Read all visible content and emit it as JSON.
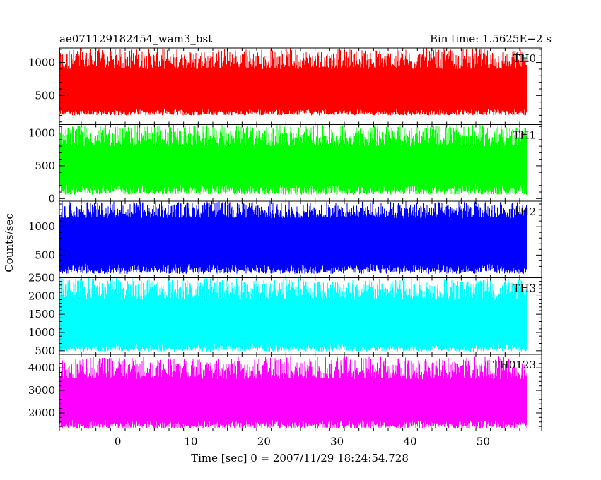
{
  "header": {
    "title": "ae071129182454_wam3_bst",
    "bin_time": "Bin time: 1.5625E−2 s"
  },
  "chart_data": {
    "type": "line",
    "x_axis": {
      "label": "Time [sec] 0 = 2007/11/29 18:24:54.728",
      "range": [
        -8,
        58
      ],
      "ticks": [
        0,
        10,
        20,
        30,
        40,
        50
      ],
      "data_range": [
        -8,
        56
      ]
    },
    "y_axis_label": "Counts/sec",
    "panels": [
      {
        "name": "TH0",
        "color": "#ff0000",
        "ylim": [
          60,
          1220
        ],
        "yticks": [
          500,
          1000
        ],
        "baseline": [
          200,
          300
        ],
        "peak": [
          900,
          1220
        ]
      },
      {
        "name": "TH1",
        "color": "#00ff00",
        "ylim": [
          -40,
          1130
        ],
        "yticks": [
          0,
          500,
          1000
        ],
        "baseline": [
          60,
          220
        ],
        "peak": [
          800,
          1130
        ]
      },
      {
        "name": "TH2",
        "color": "#0000ff",
        "ylim": [
          100,
          1450
        ],
        "yticks": [
          500,
          1000
        ],
        "baseline": [
          170,
          350
        ],
        "peak": [
          1150,
          1450
        ]
      },
      {
        "name": "TH3",
        "color": "#00ffff",
        "ylim": [
          400,
          2500
        ],
        "yticks": [
          500,
          1000,
          1500,
          2000,
          2500
        ],
        "baseline": [
          480,
          700
        ],
        "peak": [
          1900,
          2500
        ]
      },
      {
        "name": "TH0123",
        "color": "#ff00ff",
        "ylim": [
          1200,
          4600
        ],
        "yticks": [
          2000,
          3000,
          4000
        ],
        "baseline": [
          1300,
          1700
        ],
        "peak": [
          3500,
          4500
        ]
      }
    ]
  }
}
